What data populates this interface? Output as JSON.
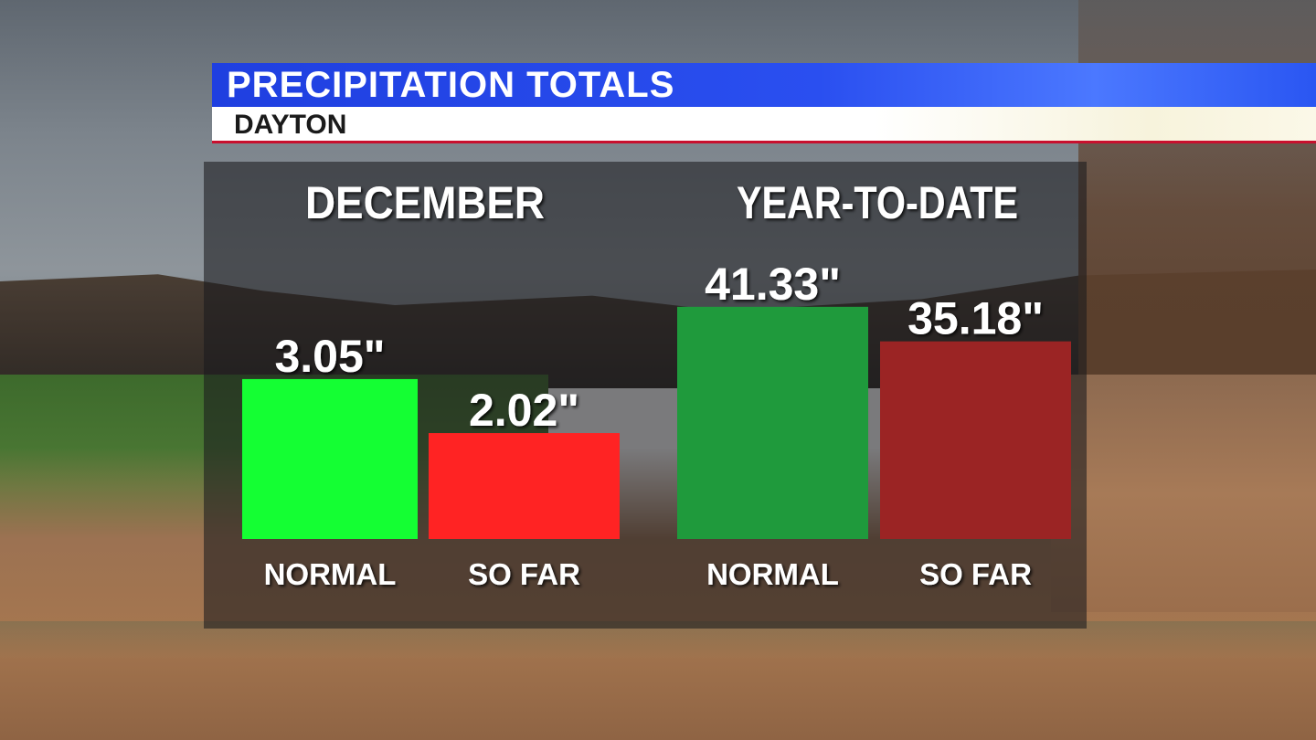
{
  "header": {
    "title": "PRECIPITATION TOTALS",
    "subtitle": "DAYTON"
  },
  "chart_data": [
    {
      "type": "bar",
      "title": "DECEMBER",
      "categories": [
        "NORMAL",
        "SO FAR"
      ],
      "values": [
        3.05,
        2.02
      ],
      "value_labels": [
        "3.05\"",
        "2.02\""
      ],
      "colors": [
        "#14ff33",
        "#ff2323"
      ]
    },
    {
      "type": "bar",
      "title": "YEAR-TO-DATE",
      "categories": [
        "NORMAL",
        "SO FAR"
      ],
      "values": [
        41.33,
        35.18
      ],
      "value_labels": [
        "41.33\"",
        "35.18\""
      ],
      "colors": [
        "#1f9a3c",
        "#9b2424"
      ]
    }
  ]
}
